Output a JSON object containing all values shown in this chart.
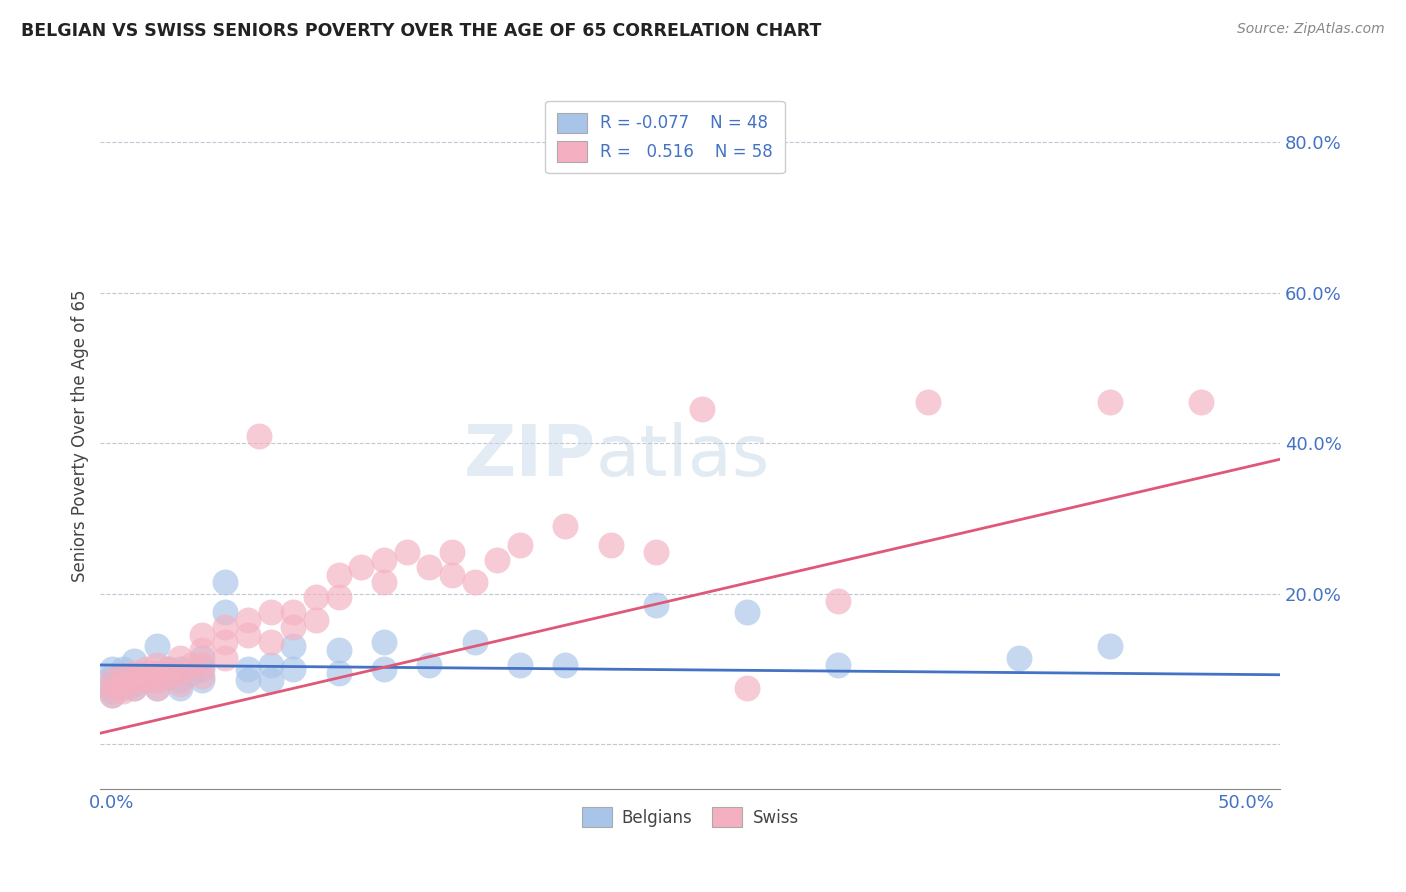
{
  "title": "BELGIAN VS SWISS SENIORS POVERTY OVER THE AGE OF 65 CORRELATION CHART",
  "source": "Source: ZipAtlas.com",
  "ylabel": "Seniors Poverty Over the Age of 65",
  "right_yticks": [
    0.0,
    0.2,
    0.4,
    0.6,
    0.8
  ],
  "right_ytick_labels": [
    "",
    "20.0%",
    "40.0%",
    "60.0%",
    "80.0%"
  ],
  "xlim": [
    -0.005,
    0.515
  ],
  "ylim": [
    -0.06,
    0.88
  ],
  "belgians_R": -0.077,
  "belgians_N": 48,
  "swiss_R": 0.516,
  "swiss_N": 58,
  "belgian_color": "#a8c4e8",
  "swiss_color": "#f4b0c0",
  "belgian_line_color": "#4472c4",
  "swiss_line_color": "#e05878",
  "watermark_zip": "ZIP",
  "watermark_atlas": "atlas",
  "belgians_scatter": [
    [
      0.0,
      0.1
    ],
    [
      0.0,
      0.09
    ],
    [
      0.0,
      0.08
    ],
    [
      0.0,
      0.07
    ],
    [
      0.0,
      0.065
    ],
    [
      0.005,
      0.1
    ],
    [
      0.005,
      0.085
    ],
    [
      0.005,
      0.075
    ],
    [
      0.01,
      0.11
    ],
    [
      0.01,
      0.09
    ],
    [
      0.01,
      0.08
    ],
    [
      0.01,
      0.075
    ],
    [
      0.015,
      0.095
    ],
    [
      0.015,
      0.085
    ],
    [
      0.02,
      0.13
    ],
    [
      0.02,
      0.095
    ],
    [
      0.02,
      0.085
    ],
    [
      0.02,
      0.075
    ],
    [
      0.025,
      0.1
    ],
    [
      0.025,
      0.09
    ],
    [
      0.03,
      0.1
    ],
    [
      0.03,
      0.085
    ],
    [
      0.03,
      0.075
    ],
    [
      0.035,
      0.095
    ],
    [
      0.04,
      0.115
    ],
    [
      0.04,
      0.1
    ],
    [
      0.04,
      0.085
    ],
    [
      0.05,
      0.215
    ],
    [
      0.05,
      0.175
    ],
    [
      0.06,
      0.1
    ],
    [
      0.06,
      0.085
    ],
    [
      0.07,
      0.105
    ],
    [
      0.07,
      0.085
    ],
    [
      0.08,
      0.13
    ],
    [
      0.08,
      0.1
    ],
    [
      0.1,
      0.125
    ],
    [
      0.1,
      0.095
    ],
    [
      0.12,
      0.135
    ],
    [
      0.12,
      0.1
    ],
    [
      0.14,
      0.105
    ],
    [
      0.16,
      0.135
    ],
    [
      0.18,
      0.105
    ],
    [
      0.2,
      0.105
    ],
    [
      0.24,
      0.185
    ],
    [
      0.28,
      0.175
    ],
    [
      0.32,
      0.105
    ],
    [
      0.4,
      0.115
    ],
    [
      0.44,
      0.13
    ]
  ],
  "swiss_scatter": [
    [
      0.0,
      0.085
    ],
    [
      0.0,
      0.075
    ],
    [
      0.0,
      0.065
    ],
    [
      0.005,
      0.09
    ],
    [
      0.005,
      0.08
    ],
    [
      0.005,
      0.07
    ],
    [
      0.01,
      0.095
    ],
    [
      0.01,
      0.085
    ],
    [
      0.01,
      0.075
    ],
    [
      0.015,
      0.1
    ],
    [
      0.015,
      0.085
    ],
    [
      0.02,
      0.105
    ],
    [
      0.02,
      0.095
    ],
    [
      0.02,
      0.085
    ],
    [
      0.02,
      0.075
    ],
    [
      0.025,
      0.1
    ],
    [
      0.025,
      0.09
    ],
    [
      0.03,
      0.115
    ],
    [
      0.03,
      0.095
    ],
    [
      0.03,
      0.08
    ],
    [
      0.035,
      0.105
    ],
    [
      0.04,
      0.145
    ],
    [
      0.04,
      0.125
    ],
    [
      0.04,
      0.105
    ],
    [
      0.04,
      0.09
    ],
    [
      0.05,
      0.155
    ],
    [
      0.05,
      0.135
    ],
    [
      0.05,
      0.115
    ],
    [
      0.06,
      0.165
    ],
    [
      0.06,
      0.145
    ],
    [
      0.065,
      0.41
    ],
    [
      0.07,
      0.175
    ],
    [
      0.07,
      0.135
    ],
    [
      0.08,
      0.175
    ],
    [
      0.08,
      0.155
    ],
    [
      0.09,
      0.195
    ],
    [
      0.09,
      0.165
    ],
    [
      0.1,
      0.225
    ],
    [
      0.1,
      0.195
    ],
    [
      0.11,
      0.235
    ],
    [
      0.12,
      0.245
    ],
    [
      0.12,
      0.215
    ],
    [
      0.13,
      0.255
    ],
    [
      0.14,
      0.235
    ],
    [
      0.15,
      0.255
    ],
    [
      0.15,
      0.225
    ],
    [
      0.16,
      0.215
    ],
    [
      0.17,
      0.245
    ],
    [
      0.18,
      0.265
    ],
    [
      0.2,
      0.29
    ],
    [
      0.22,
      0.265
    ],
    [
      0.24,
      0.255
    ],
    [
      0.26,
      0.445
    ],
    [
      0.28,
      0.075
    ],
    [
      0.32,
      0.19
    ],
    [
      0.36,
      0.455
    ],
    [
      0.44,
      0.455
    ],
    [
      0.48,
      0.455
    ]
  ]
}
